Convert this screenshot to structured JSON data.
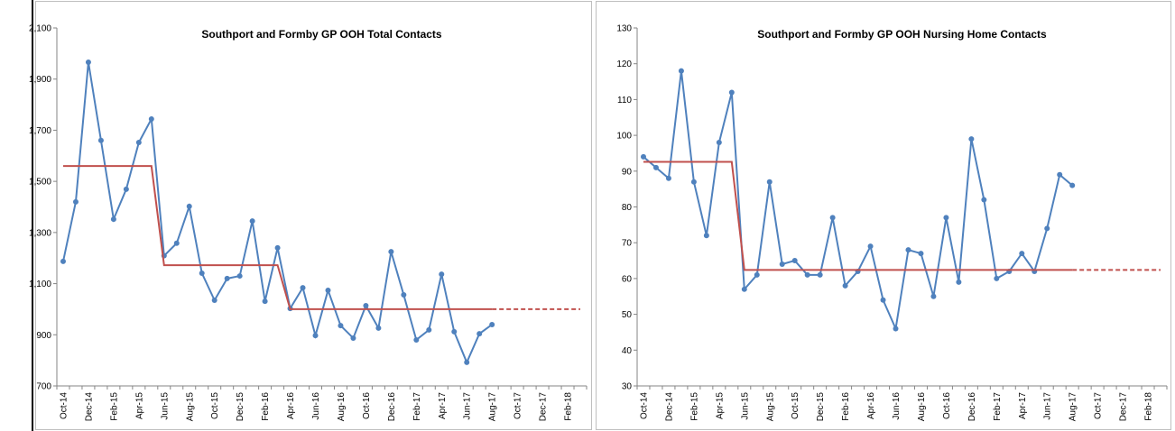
{
  "chart_data": [
    {
      "type": "line",
      "title": "Southport and Formby GP OOH Total Contacts",
      "categories": [
        "Oct-14",
        null,
        "Dec-14",
        null,
        "Feb-15",
        null,
        "Apr-15",
        null,
        "Jun-15",
        null,
        "Aug-15",
        null,
        "Oct-15",
        null,
        "Dec-15",
        null,
        "Feb-16",
        null,
        "Apr-16",
        null,
        "Jun-16",
        null,
        "Aug-16",
        null,
        "Oct-16",
        null,
        "Dec-16",
        null,
        "Feb-17",
        null,
        "Apr-17",
        null,
        "Jun-17",
        null,
        "Aug-17",
        null,
        "Oct-17",
        null,
        "Dec-17",
        null,
        "Feb-18",
        null
      ],
      "series": [
        {
          "color": "#4f81bd",
          "markers": true,
          "values": [
            1187,
            1420,
            1966,
            1660,
            1352,
            1469,
            1652,
            1744,
            1209,
            1258,
            1402,
            1141,
            1035,
            1120,
            1130,
            1345,
            1031,
            1240,
            1003,
            1084,
            897,
            1074,
            936,
            887,
            1014,
            926,
            1225,
            1056,
            880,
            919,
            1137,
            912,
            792,
            904,
            940,
            null,
            null,
            null,
            null,
            null,
            null,
            null
          ]
        },
        {
          "color": "#c0504d",
          "markers": false,
          "values": [
            1560,
            1560,
            1560,
            1560,
            1560,
            1560,
            1560,
            1560,
            1172,
            1172,
            1172,
            1172,
            1172,
            1172,
            1172,
            1172,
            1172,
            1172,
            1000,
            1000,
            1000,
            1000,
            1000,
            1000,
            1000,
            1000,
            1000,
            1000,
            1000,
            1000,
            1000,
            1000,
            1000,
            1000,
            1000,
            null,
            null,
            null,
            null,
            null,
            null,
            null
          ]
        },
        {
          "color": "#c0504d",
          "markers": false,
          "dashed": true,
          "values": [
            null,
            null,
            null,
            null,
            null,
            null,
            null,
            null,
            null,
            null,
            null,
            null,
            null,
            null,
            null,
            null,
            null,
            null,
            null,
            null,
            null,
            null,
            null,
            null,
            null,
            null,
            null,
            null,
            null,
            null,
            null,
            null,
            null,
            null,
            1000,
            1000,
            1000,
            1000,
            1000,
            1000,
            1000,
            1000
          ]
        }
      ],
      "ylim": [
        700,
        2100
      ],
      "yticks": [
        700,
        900,
        {
          "value": 1100,
          "label": "1,100"
        },
        {
          "value": 1300,
          "label": "1,300"
        },
        {
          "value": 1500,
          "label": "1,500"
        },
        {
          "value": 1700,
          "label": "1,700"
        },
        {
          "value": 1900,
          "label": "1,900"
        },
        {
          "value": 2100,
          "label": "2,100"
        }
      ],
      "grid": false
    },
    {
      "type": "line",
      "title": "Southport and Formby GP OOH Nursing Home Contacts",
      "categories": [
        "Oct-14",
        null,
        "Dec-14",
        null,
        "Feb-15",
        null,
        "Apr-15",
        null,
        "Jun-15",
        null,
        "Aug-15",
        null,
        "Oct-15",
        null,
        "Dec-15",
        null,
        "Feb-16",
        null,
        "Apr-16",
        null,
        "Jun-16",
        null,
        "Aug-16",
        null,
        "Oct-16",
        null,
        "Dec-16",
        null,
        "Feb-17",
        null,
        "Apr-17",
        null,
        "Jun-17",
        null,
        "Aug-17",
        null,
        "Oct-17",
        null,
        "Dec-17",
        null,
        "Feb-18",
        null
      ],
      "series": [
        {
          "color": "#4f81bd",
          "markers": true,
          "values": [
            94,
            91,
            88,
            118,
            87,
            72,
            98,
            112,
            57,
            61,
            87,
            64,
            65,
            61,
            61,
            77,
            58,
            62,
            69,
            54,
            46,
            68,
            67,
            55,
            77,
            59,
            99,
            82,
            60,
            62,
            67,
            62,
            74,
            89,
            86,
            null,
            null,
            null,
            null,
            null,
            null,
            null
          ]
        },
        {
          "color": "#c0504d",
          "markers": false,
          "values": [
            92.6,
            92.6,
            92.6,
            92.6,
            92.6,
            92.6,
            92.6,
            92.6,
            62.4,
            62.4,
            62.4,
            62.4,
            62.4,
            62.4,
            62.4,
            62.4,
            62.4,
            62.4,
            62.4,
            62.4,
            62.4,
            62.4,
            62.4,
            62.4,
            62.4,
            62.4,
            62.4,
            62.4,
            62.4,
            62.4,
            62.4,
            62.4,
            62.4,
            62.4,
            62.4,
            null,
            null,
            null,
            null,
            null,
            null,
            null
          ]
        },
        {
          "color": "#c0504d",
          "markers": false,
          "dashed": true,
          "values": [
            null,
            null,
            null,
            null,
            null,
            null,
            null,
            null,
            null,
            null,
            null,
            null,
            null,
            null,
            null,
            null,
            null,
            null,
            null,
            null,
            null,
            null,
            null,
            null,
            null,
            null,
            null,
            null,
            null,
            null,
            null,
            null,
            null,
            null,
            62.4,
            62.4,
            62.4,
            62.4,
            62.4,
            62.4,
            62.4,
            62.4
          ]
        }
      ],
      "ylim": [
        30,
        130
      ],
      "yticks": [
        30,
        40,
        50,
        60,
        70,
        80,
        90,
        100,
        110,
        120,
        130
      ],
      "grid": false
    }
  ]
}
